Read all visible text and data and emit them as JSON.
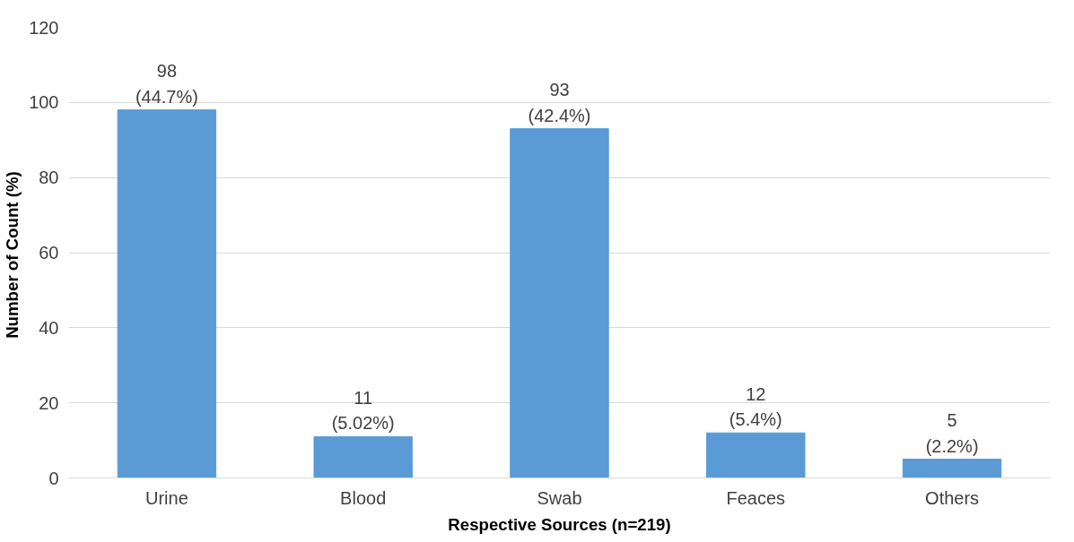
{
  "chart_data": {
    "type": "bar",
    "xlabel": "Respective Sources (n=219)",
    "ylabel": "Number of  Count (%)",
    "categories": [
      "Urine",
      "Blood",
      "Swab",
      "Feaces",
      "Others"
    ],
    "values": [
      98,
      11,
      93,
      12,
      5
    ],
    "value_labels": [
      "98\n(44.7%)",
      "11\n(5.02%)",
      "93\n(42.4%)",
      "12\n(5.4%)",
      "5\n(2.2%)"
    ],
    "color": "#5b9bd5",
    "ylim": [
      0,
      120
    ],
    "yticks": [
      0,
      20,
      40,
      60,
      80,
      100,
      120
    ],
    "grid": "y"
  }
}
